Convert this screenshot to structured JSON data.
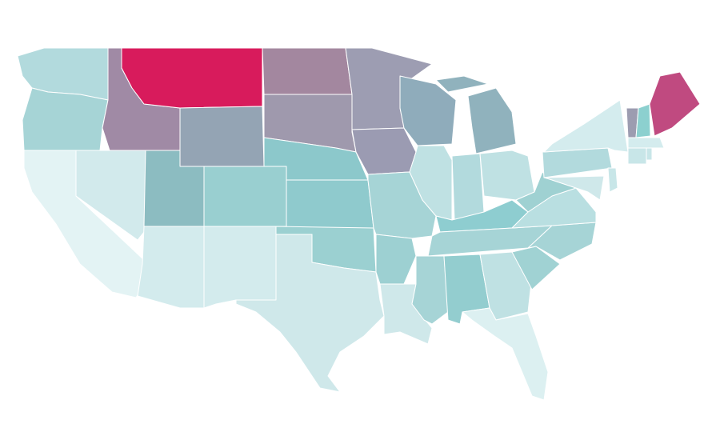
{
  "regions": [
    {
      "color": "#b2dadd"
    },
    {
      "color": "#a6d4d6"
    },
    {
      "color": "#e3f3f4"
    },
    {
      "color": "#d2eaec"
    },
    {
      "color": "#a08aa5"
    },
    {
      "color": "#d81b5c"
    },
    {
      "color": "#94a4b4"
    },
    {
      "color": "#8cbcc1"
    },
    {
      "color": "#99cfd0"
    },
    {
      "color": "#d3ebed"
    },
    {
      "color": "#d3ebed"
    },
    {
      "color": "#a3879f"
    },
    {
      "color": "#9f99ad"
    },
    {
      "color": "#8cc8cb"
    },
    {
      "color": "#8fcacd"
    },
    {
      "color": "#9bd0d1"
    },
    {
      "color": "#cfe8ea"
    },
    {
      "color": "#9d9db2"
    },
    {
      "color": "#9b9bb2"
    },
    {
      "color": "#a6d4d6"
    },
    {
      "color": "#9dd0d2"
    },
    {
      "color": "#cfe8ea"
    },
    {
      "color": "#8facbb"
    },
    {
      "color": "#bfe1e3"
    },
    {
      "color": "#90b2bd"
    },
    {
      "color": "#90b2bd"
    },
    {
      "color": "#b2dadd"
    },
    {
      "color": "#bfe1e3"
    },
    {
      "color": "#8ecdd0"
    },
    {
      "color": "#a6d4d6"
    },
    {
      "color": "#a6d4d6"
    },
    {
      "color": "#93cdcf"
    },
    {
      "color": "#bfe1e3"
    },
    {
      "color": "#dcf0f1"
    },
    {
      "color": "#a0d2d3"
    },
    {
      "color": "#a6d4d6"
    },
    {
      "color": "#b9dfe1"
    },
    {
      "color": "#9fd1d2"
    },
    {
      "color": "#b2dadd"
    },
    {
      "color": "#d4ecee"
    },
    {
      "color": "#c8e6e8"
    },
    {
      "color": "#cfe8ea"
    },
    {
      "color": "#9c9cb0"
    },
    {
      "color": "#8cd0cf"
    },
    {
      "color": "#c04a80"
    },
    {
      "color": "#d4ecee"
    },
    {
      "color": "#c8e6e8"
    },
    {
      "color": "#c8e6e8"
    }
  ]
}
